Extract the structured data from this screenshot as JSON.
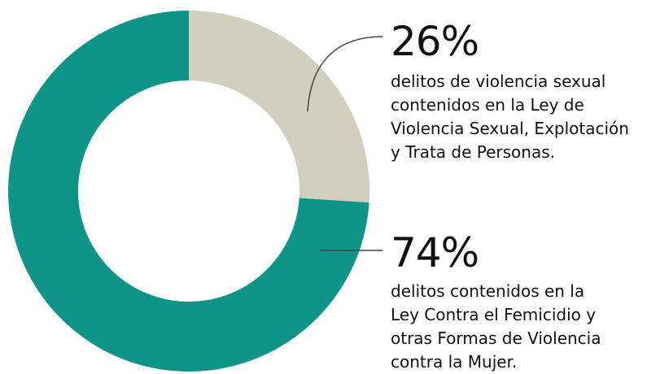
{
  "chart_data": {
    "type": "donut",
    "categories": [
      "delitos de violencia sexual\ncontenidos en la Ley de\nViolencia Sexual, Explotación\ny Trata de Personas.",
      "delitos contenidos en la\nLey Contra el Femicidio y\notras Formas de Violencia\ncontra la Mujer."
    ],
    "values": [
      26,
      74
    ],
    "value_labels": [
      "26%",
      "74%"
    ],
    "colors": [
      "#d3cfbf",
      "#0f9588"
    ]
  }
}
